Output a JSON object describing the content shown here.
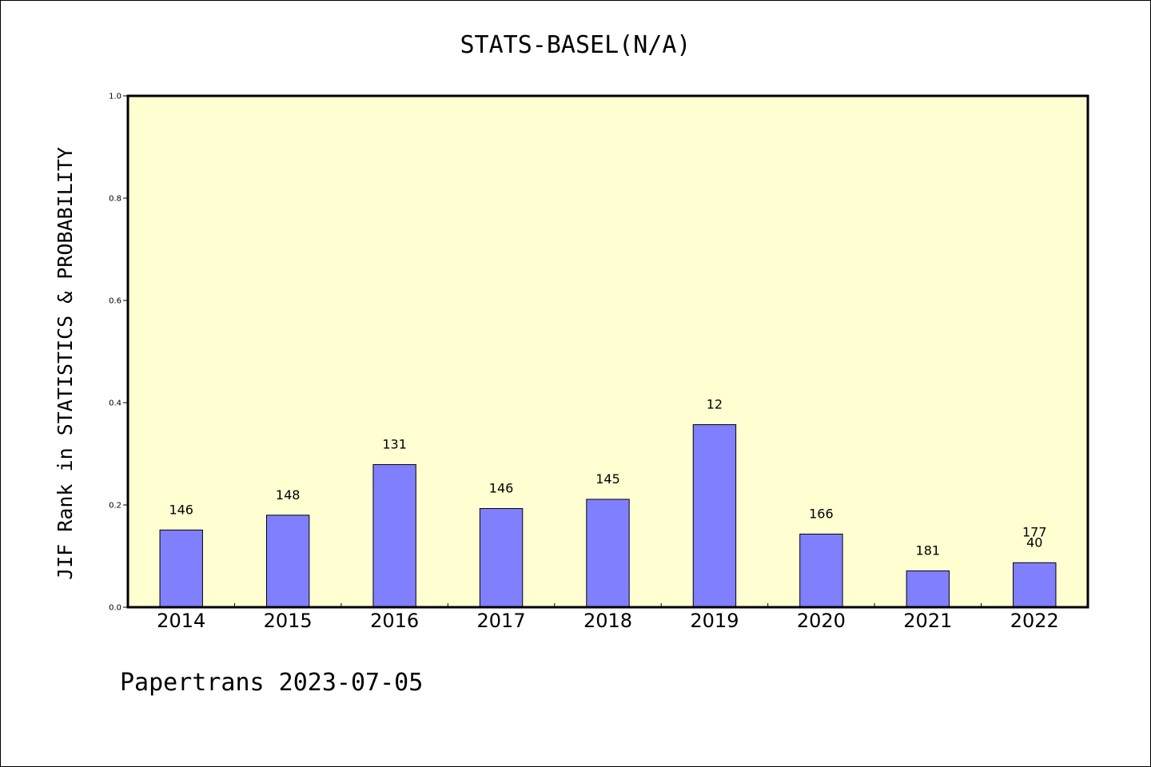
{
  "chart_data": {
    "type": "bar",
    "title": "STATS-BASEL(N/A)",
    "ylabel": "JIF Rank in STATISTICS & PROBABILITY",
    "xlabel": "",
    "categories": [
      "2014",
      "2015",
      "2016",
      "2017",
      "2018",
      "2019",
      "2020",
      "2021",
      "2022"
    ],
    "values": [
      0.151,
      0.18,
      0.279,
      0.193,
      0.211,
      0.357,
      0.143,
      0.071,
      0.087
    ],
    "bar_labels": [
      "146",
      "148",
      "131",
      "146",
      "145",
      "12",
      "166",
      "181",
      "40"
    ],
    "extra_labels": [
      "",
      "",
      "",
      "",
      "",
      "",
      "",
      "",
      "177"
    ],
    "ylim": [
      0,
      1.0
    ],
    "yticks": [
      "0.0",
      "0.2",
      "0.4",
      "0.6",
      "0.8",
      "1.0"
    ],
    "grid": false,
    "colors": {
      "plot_background": "#ffffd2",
      "bar_fill": "#8080ff",
      "bar_stroke": "#000000",
      "frame": "#000000"
    }
  },
  "footer": "Papertrans 2023-07-05"
}
